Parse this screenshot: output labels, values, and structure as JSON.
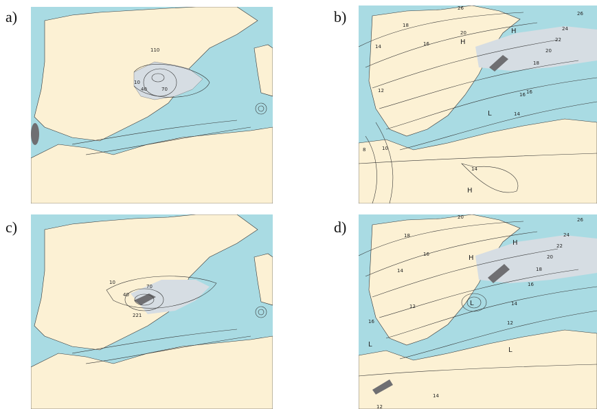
{
  "colors": {
    "land": "#fcf1d4",
    "sea": "#a9dbe3",
    "shade_light": "#d6dde3",
    "shade_dark": "#6f6f72",
    "contour": "#333333"
  },
  "panels": [
    {
      "label": "a)",
      "contour_labels": [
        "110",
        "10",
        "40",
        "70"
      ]
    },
    {
      "label": "b)",
      "contour_labels": [
        "26",
        "26",
        "24",
        "22",
        "20",
        "18",
        "18",
        "16",
        "20",
        "H",
        "H",
        "14",
        "16",
        "12",
        "16",
        "L",
        "14",
        "8",
        "10",
        "14",
        "H"
      ]
    },
    {
      "label": "c)",
      "contour_labels": [
        "10",
        "70",
        "40",
        "221"
      ]
    },
    {
      "label": "d)",
      "contour_labels": [
        "20",
        "26",
        "24",
        "22",
        "20",
        "18",
        "18",
        "16",
        "H",
        "H",
        "16",
        "14",
        "12",
        "14",
        "L",
        "12",
        "L",
        "16",
        "L",
        "12",
        "14"
      ]
    }
  ]
}
